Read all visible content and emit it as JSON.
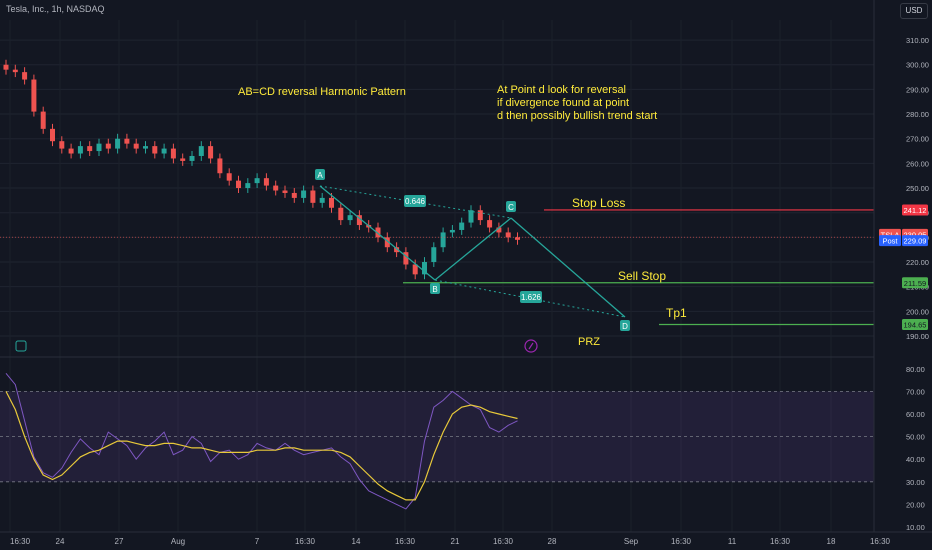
{
  "header": {
    "title": "Tesla, Inc., 1h, NASDAQ",
    "currency": "USD"
  },
  "annotations": {
    "pattern_title": "AB=CD reversal Harmonic Pattern",
    "note_lines": [
      "At Point d look for reversal",
      "if divergence found at point",
      "d then possibly bullish trend start"
    ],
    "stop_loss": "Stop Loss",
    "sell_stop": "Sell Stop",
    "tp1": "Tp1",
    "prz": "PRZ",
    "ratio_ac": "0.646",
    "ratio_bd": "1.626",
    "points": [
      "A",
      "B",
      "C",
      "D"
    ]
  },
  "colors": {
    "background": "#131722",
    "up": "#26a69a",
    "down": "#ef5350",
    "pattern": "#26a69a",
    "annotation_text": "#ffeb3b",
    "stop_loss_line": "#f23645",
    "green_line": "#4caf50",
    "rsi": "#7e57c2",
    "rsi_ma": "#e8c93a"
  },
  "chart_data": [
    {
      "type": "candlestick",
      "x_ticks": [
        "16:30",
        "24",
        "27",
        "Aug",
        "7",
        "16:30",
        "14",
        "16:30",
        "21",
        "16:30",
        "28",
        "Sep",
        "16:30",
        "11",
        "16:30",
        "18",
        "16:30"
      ],
      "y_ticks": [
        190,
        200,
        210,
        220,
        230,
        240,
        250,
        260,
        270,
        280,
        290,
        300,
        310
      ],
      "ylim": [
        186,
        316
      ],
      "grid": true,
      "series": [
        {
          "close": [
            298,
            297,
            294,
            281,
            274,
            269,
            266,
            264,
            267,
            265,
            268,
            266,
            270,
            268,
            266,
            267,
            264,
            266,
            262,
            261,
            263,
            267,
            262,
            256,
            253,
            250,
            252,
            254,
            251,
            249,
            248,
            246,
            249,
            244,
            246,
            242,
            237,
            239,
            235,
            234,
            230,
            226,
            224,
            219,
            215,
            220,
            226,
            232,
            233,
            236,
            241,
            237,
            234,
            232,
            230,
            229
          ]
        }
      ],
      "price_labels": [
        {
          "label": "241.12",
          "value": 241.12
        },
        {
          "label": "TSLA",
          "value": 231.2
        },
        {
          "label": "230.05",
          "value": 231.2
        },
        {
          "label": "Post",
          "value": 228.7
        },
        {
          "label": "229.09",
          "value": 228.7
        },
        {
          "label": "211.59",
          "value": 211.59
        },
        {
          "label": "194.65",
          "value": 194.65
        }
      ]
    },
    {
      "type": "line",
      "y_ticks": [
        10,
        20,
        30,
        40,
        50,
        60,
        70,
        80
      ],
      "ylim": [
        5,
        85
      ],
      "bands": [
        30,
        50,
        70
      ],
      "series": [
        {
          "values": [
            78,
            73,
            57,
            41,
            34,
            32,
            36,
            43,
            49,
            45,
            42,
            52,
            49,
            46,
            40,
            45,
            48,
            52,
            42,
            44,
            50,
            47,
            39,
            43,
            44,
            40,
            42,
            47,
            45,
            44,
            47,
            44,
            42,
            43,
            44,
            45,
            41,
            38,
            31,
            26,
            24,
            22,
            20,
            18,
            23,
            48,
            63,
            66,
            70,
            67,
            64,
            62,
            54,
            52,
            55,
            57
          ]
        },
        {
          "values": [
            70,
            62,
            50,
            40,
            33,
            31,
            33,
            37,
            41,
            43,
            44,
            46,
            48,
            48,
            47,
            46,
            46,
            47,
            47,
            46,
            45,
            45,
            44,
            43,
            43,
            43,
            43,
            44,
            44,
            44,
            45,
            45,
            44,
            44,
            44,
            44,
            43,
            41,
            37,
            33,
            29,
            26,
            24,
            22,
            22,
            30,
            42,
            52,
            60,
            63,
            64,
            63,
            61,
            60,
            59,
            58
          ]
        }
      ]
    }
  ]
}
